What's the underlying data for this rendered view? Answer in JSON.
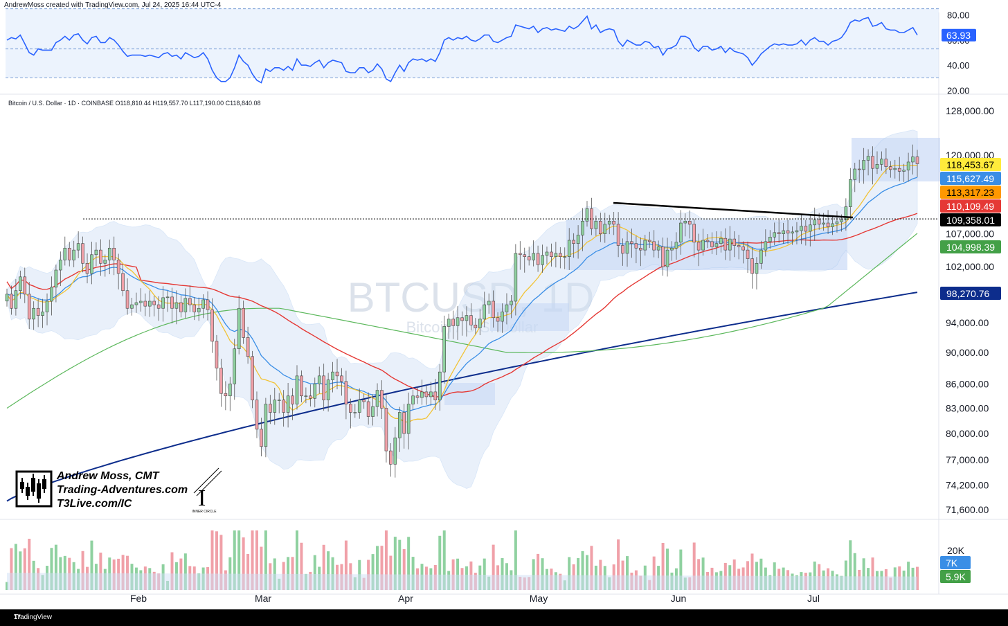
{
  "header": {
    "credit": "AndrewMoss created with TradingView.com, Jul 24, 2025 16:44 UTC-4",
    "symbol_line": "Bitcoin / U.S. Dollar · 1D · COINBASE  O118,810.44  H119,557.70  L117,190.00  C118,840.08"
  },
  "watermark": {
    "symbol": "BTCUSD, 1D",
    "name": "Bitcoin / U.S. Dollar"
  },
  "author": {
    "name": "Andrew Moss, CMT",
    "site": "Trading-Adventures.com",
    "site2": "T3Live.com/IC",
    "badge": "INNER CIRCLE"
  },
  "footer": {
    "brand": "TradingView"
  },
  "colors": {
    "up": "#26a69a",
    "up_fill": "#8fd1a0",
    "down": "#ef5350",
    "down_fill": "#f0a0a8",
    "sma10": "#f2c335",
    "ema20": "#3a8ee6",
    "sma50": "#e53935",
    "sma100": "#5cb85c",
    "sma200": "#0d2d8c",
    "rsi": "#2962ff",
    "band": "#dce9fb"
  },
  "chart_data": {
    "type": "candlestick",
    "title": "Bitcoin / U.S. Dollar · 1D · COINBASE",
    "price_axis": {
      "ticks": [
        "128,000.00",
        "120,000.00",
        "107,000.00",
        "102,000.00",
        "94,000.00",
        "90,000.00",
        "86,000.00",
        "83,000.00",
        "80,000.00",
        "77,000.00",
        "74,200.00",
        "71,600.00"
      ],
      "tick_values": [
        128000,
        120000,
        107000,
        102000,
        94000,
        90000,
        86000,
        83000,
        80000,
        77000,
        74200,
        71600
      ],
      "scale": "log"
    },
    "time_axis": {
      "labels": [
        "Feb",
        "Mar",
        "Apr",
        "May",
        "Jun",
        "Jul"
      ]
    },
    "price_tags": [
      {
        "label": "118,453.67",
        "value": 118453.67,
        "bg": "#ffeb3b",
        "fg": "#000000"
      },
      {
        "label": "115,627.49",
        "value": 115627.49,
        "bg": "#3a8ee6",
        "fg": "#ffffff"
      },
      {
        "label": "113,317.23",
        "value": 113317.23,
        "bg": "#ff9800",
        "fg": "#000000"
      },
      {
        "label": "110,109.49",
        "value": 110109.49,
        "bg": "#e53935",
        "fg": "#ffffff"
      },
      {
        "label": "109,358.01",
        "value": 109358.01,
        "bg": "#000000",
        "fg": "#ffffff"
      },
      {
        "label": "104,998.39",
        "value": 104998.39,
        "bg": "#43a047",
        "fg": "#ffffff"
      },
      {
        "label": "98,270.76",
        "value": 98270.76,
        "bg": "#0d2d8c",
        "fg": "#ffffff"
      }
    ],
    "anchors": {
      "closes": [
        98000,
        96000,
        98500,
        100500,
        98000,
        94500,
        96000,
        95000,
        95500,
        97000,
        99000,
        101500,
        103000,
        104800,
        103000,
        104500,
        105500,
        102500,
        101000,
        103800,
        104500,
        102500,
        103000,
        104800,
        103000,
        101000,
        98500,
        96000,
        96500,
        96800,
        97000,
        96300,
        97000,
        96500,
        96000,
        97500,
        97600,
        96000,
        96800,
        95500,
        97400,
        96500,
        95500,
        96000,
        97200,
        95800,
        91500,
        88000,
        84800,
        84500,
        86000,
        90500,
        96000,
        92000,
        89500,
        84000,
        80500,
        78500,
        83500,
        82500,
        84000,
        84000,
        82500,
        84500,
        83500,
        87000,
        84500,
        84500,
        84200,
        86000,
        87000,
        84000,
        86500,
        87500,
        87000,
        86300,
        83500,
        82500,
        82500,
        84000,
        83800,
        82000,
        83200,
        85200,
        83000,
        78000,
        76500,
        79500,
        82500,
        80000,
        83500,
        84500,
        84300,
        85000,
        84400,
        85000,
        84000,
        87500,
        93500,
        94500,
        93600,
        94700,
        94300,
        95000,
        93700,
        93300,
        94500,
        96500,
        97000,
        94700,
        94200,
        95500,
        96500,
        97000,
        104000,
        103800,
        103500,
        103000,
        104000,
        102300,
        103700,
        104200,
        103500,
        104000,
        103500,
        103500,
        106000,
        105500,
        106800,
        109000,
        111000,
        107800,
        109000,
        107000,
        108500,
        109000,
        108500,
        105200,
        104000,
        105800,
        105500,
        104800,
        104500,
        106000,
        105800,
        104500,
        105000,
        102000,
        104500,
        104800,
        105700,
        108700,
        109000,
        108500,
        105700,
        104500,
        106000,
        105800,
        105000,
        105500,
        106300,
        104500,
        106200,
        105200,
        105000,
        104500,
        103200,
        101000,
        102500,
        104500,
        105800,
        106500,
        107200,
        107000,
        107500,
        107100,
        107300,
        107500,
        108200,
        107400,
        108400,
        109200,
        108500,
        108700,
        108100,
        108600,
        108900,
        109200,
        111300,
        115800,
        117600,
        117500,
        119100,
        119800,
        117700,
        118400,
        119300,
        118000,
        117500,
        117700,
        117200,
        117400,
        118800,
        119700,
        118500
      ],
      "sma10_end": 118453.67,
      "ema20_end": 115627.49,
      "sma50_end": 110109.49,
      "sma100_end": 104998.39,
      "sma200_end": 98270.76,
      "resistance": 109358.01
    },
    "rsi": {
      "axis_ticks": [
        "80.00",
        "60.00",
        "40.00",
        "20.00"
      ],
      "tick_values": [
        80,
        60,
        40,
        20
      ],
      "current_label": "63.93",
      "current": 63.93,
      "band": [
        30,
        70
      ],
      "values": [
        60,
        62,
        61,
        64,
        57,
        50,
        48,
        53,
        52,
        52,
        52,
        58,
        60,
        63,
        60,
        64,
        65,
        60,
        57,
        62,
        63,
        58,
        58,
        62,
        60,
        56,
        51,
        47,
        48,
        48,
        48,
        47,
        48,
        47,
        46,
        49,
        50,
        47,
        48,
        45,
        50,
        48,
        46,
        47,
        50,
        45,
        36,
        30,
        27,
        27,
        30,
        38,
        48,
        43,
        40,
        33,
        28,
        26,
        37,
        35,
        38,
        38,
        36,
        39,
        36,
        45,
        40,
        40,
        39,
        42,
        44,
        38,
        42,
        44,
        43,
        42,
        35,
        34,
        34,
        38,
        38,
        34,
        36,
        41,
        37,
        29,
        27,
        34,
        40,
        35,
        42,
        45,
        44,
        45,
        43,
        45,
        43,
        50,
        60,
        62,
        60,
        62,
        61,
        63,
        60,
        59,
        61,
        64,
        64,
        59,
        58,
        60,
        62,
        63,
        72,
        71,
        70,
        69,
        71,
        66,
        69,
        70,
        68,
        69,
        68,
        67,
        71,
        69,
        71,
        75,
        79,
        69,
        72,
        66,
        68,
        69,
        68,
        59,
        55,
        60,
        58,
        56,
        56,
        59,
        58,
        54,
        55,
        48,
        53,
        54,
        56,
        63,
        63,
        61,
        54,
        51,
        55,
        55,
        52,
        53,
        55,
        50,
        54,
        51,
        50,
        49,
        46,
        40,
        44,
        49,
        52,
        55,
        57,
        56,
        57,
        56,
        56,
        57,
        60,
        56,
        60,
        62,
        59,
        59,
        56,
        59,
        60,
        62,
        67,
        74,
        76,
        75,
        77,
        78,
        71,
        72,
        74,
        69,
        68,
        68,
        66,
        66,
        68,
        70,
        64
      ]
    },
    "volume": {
      "axis_ticks": [
        "20K"
      ],
      "tags": [
        {
          "label": "7K",
          "value": 7000,
          "bg": "#3a8ee6",
          "fg": "#ffffff"
        },
        {
          "label": "5.9K",
          "value": 5900,
          "bg": "#43a047",
          "fg": "#ffffff"
        }
      ],
      "max": 26000
    }
  }
}
